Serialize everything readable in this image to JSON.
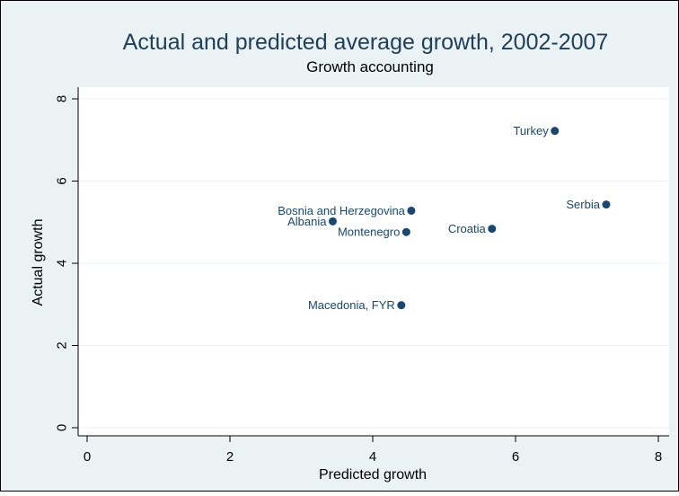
{
  "chart_data": {
    "type": "scatter",
    "title": "Actual and predicted average growth, 2002-2007",
    "subtitle": "Growth accounting",
    "xlabel": "Predicted growth",
    "ylabel": "Actual growth",
    "xlim": [
      0,
      8
    ],
    "ylim": [
      0,
      8
    ],
    "x_ticks": [
      0,
      2,
      4,
      6,
      8
    ],
    "y_ticks": [
      0,
      2,
      4,
      6,
      8
    ],
    "x_tick_labels": [
      "0",
      "2",
      "4",
      "6",
      "8"
    ],
    "y_tick_labels": [
      "0",
      "2",
      "4",
      "6",
      "8"
    ],
    "grid": true,
    "points": [
      {
        "label": "Turkey",
        "x": 6.55,
        "y": 7.22
      },
      {
        "label": "Serbia",
        "x": 7.27,
        "y": 5.43
      },
      {
        "label": "Bosnia and Herzegovina",
        "x": 4.54,
        "y": 5.28
      },
      {
        "label": "Albania",
        "x": 3.44,
        "y": 5.02
      },
      {
        "label": "Croatia",
        "x": 5.67,
        "y": 4.84
      },
      {
        "label": "Montenegro",
        "x": 4.47,
        "y": 4.76
      },
      {
        "label": "Macedonia, FYR",
        "x": 4.4,
        "y": 2.98
      }
    ],
    "colors": {
      "marker": "#1a476f",
      "outer_background": "#eaf2f3",
      "plot_background": "#ffffff",
      "grid": "#eaf2f3",
      "title": "#1e3f5a"
    }
  }
}
